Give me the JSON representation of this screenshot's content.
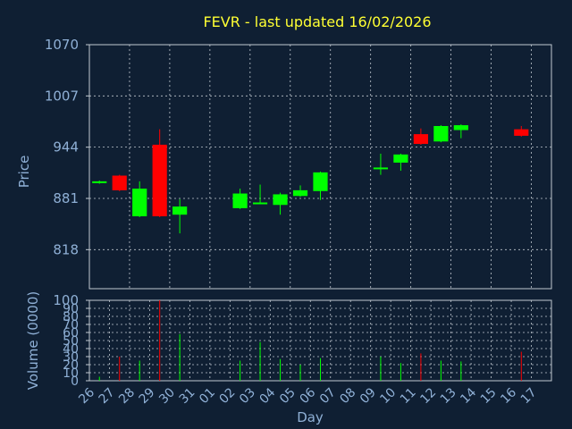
{
  "chart_data": {
    "type": "candlestick",
    "title": "FEVR - last updated 16/02/2026",
    "xlabel": "Day",
    "ylabel_price": "Price",
    "ylabel_volume": "Volume (0000)",
    "x_labels": [
      "26",
      "27",
      "28",
      "29",
      "30",
      "31",
      "01",
      "02",
      "03",
      "04",
      "05",
      "06",
      "07",
      "08",
      "09",
      "10",
      "11",
      "12",
      "13",
      "14",
      "15",
      "16",
      "17"
    ],
    "price_ticks": [
      818,
      881,
      944,
      1007,
      1070
    ],
    "price_range": [
      770,
      1070
    ],
    "volume_ticks": [
      0,
      10,
      20,
      30,
      40,
      50,
      60,
      70,
      80,
      90,
      100
    ],
    "volume_range": [
      0,
      100
    ],
    "grid": true,
    "colors": {
      "background": "#0f1f33",
      "up": "#00ff00",
      "down": "#ff0000",
      "grid": "#c0c8d0",
      "axis": "#c0c8d0",
      "title": "#ffff33",
      "label": "#8fb0d6"
    },
    "candles": [
      {
        "day": "26",
        "open": 900,
        "close": 902,
        "high": 903,
        "low": 899,
        "volume": 5
      },
      {
        "day": "27",
        "open": 909,
        "close": 891,
        "high": 910,
        "low": 890,
        "volume": 30
      },
      {
        "day": "28",
        "open": 859,
        "close": 893,
        "high": 902,
        "low": 858,
        "volume": 25
      },
      {
        "day": "29",
        "open": 947,
        "close": 859,
        "high": 966,
        "low": 858,
        "volume": 100
      },
      {
        "day": "30",
        "open": 861,
        "close": 871,
        "high": 880,
        "low": 838,
        "volume": 58
      },
      {
        "day": "02",
        "open": 869,
        "close": 887,
        "high": 893,
        "low": 868,
        "volume": 25
      },
      {
        "day": "03",
        "open": 875,
        "close": 876,
        "high": 898,
        "low": 874,
        "volume": 48
      },
      {
        "day": "04",
        "open": 873,
        "close": 886,
        "high": 888,
        "low": 861,
        "volume": 27
      },
      {
        "day": "05",
        "open": 884,
        "close": 891,
        "high": 897,
        "low": 883,
        "volume": 20
      },
      {
        "day": "06",
        "open": 890,
        "close": 913,
        "high": 914,
        "low": 879,
        "volume": 28
      },
      {
        "day": "09",
        "open": 918,
        "close": 919,
        "high": 936,
        "low": 910,
        "volume": 30
      },
      {
        "day": "10",
        "open": 925,
        "close": 935,
        "high": 936,
        "low": 915,
        "volume": 22
      },
      {
        "day": "11",
        "open": 960,
        "close": 948,
        "high": 967,
        "low": 947,
        "volume": 34
      },
      {
        "day": "12",
        "open": 951,
        "close": 970,
        "high": 971,
        "low": 950,
        "volume": 25
      },
      {
        "day": "13",
        "open": 965,
        "close": 971,
        "high": 972,
        "low": 955,
        "volume": 24
      },
      {
        "day": "16",
        "open": 966,
        "close": 958,
        "high": 970,
        "low": 957,
        "volume": 36
      }
    ]
  }
}
